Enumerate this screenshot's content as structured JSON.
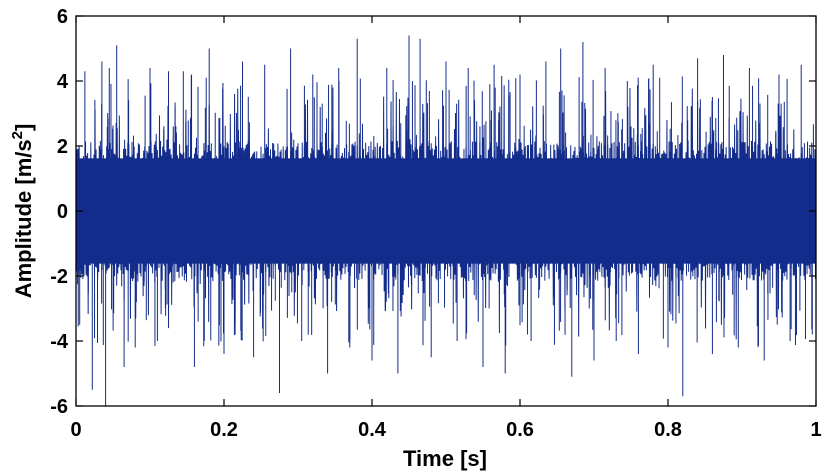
{
  "chart_data": {
    "type": "line",
    "title": "",
    "xlabel": "Time [s]",
    "ylabel_prefix": "Amplitude [m/s",
    "ylabel_sup": "2",
    "ylabel_suffix": "]",
    "xlim": [
      0,
      1
    ],
    "ylim": [
      -6,
      6
    ],
    "xticks": [
      0,
      0.2,
      0.4,
      0.6,
      0.8,
      1
    ],
    "xtick_labels": [
      "0",
      "0.2",
      "0.4",
      "0.6",
      "0.8",
      "1"
    ],
    "yticks": [
      -6,
      -4,
      -2,
      0,
      2,
      4,
      6
    ],
    "ytick_labels": [
      "-6",
      "-4",
      "-2",
      "0",
      "2",
      "4",
      "6"
    ],
    "grid": false,
    "legend": "none",
    "series": [
      {
        "color": "#132c8c",
        "core_amplitude": 1.8,
        "peaks": [
          {
            "x": 0.0,
            "y": 4.0
          },
          {
            "x": 0.005,
            "y": -3.5
          },
          {
            "x": 0.012,
            "y": 4.3
          },
          {
            "x": 0.022,
            "y": -5.5
          },
          {
            "x": 0.035,
            "y": 4.6
          },
          {
            "x": 0.04,
            "y": -6.0
          },
          {
            "x": 0.045,
            "y": 4.4
          },
          {
            "x": 0.055,
            "y": 5.1
          },
          {
            "x": 0.065,
            "y": -4.8
          },
          {
            "x": 0.08,
            "y": -4.2
          },
          {
            "x": 0.1,
            "y": 4.4
          },
          {
            "x": 0.11,
            "y": -4.0
          },
          {
            "x": 0.125,
            "y": 4.3
          },
          {
            "x": 0.145,
            "y": 4.3
          },
          {
            "x": 0.16,
            "y": -4.8
          },
          {
            "x": 0.18,
            "y": 5.0
          },
          {
            "x": 0.2,
            "y": -4.4
          },
          {
            "x": 0.215,
            "y": -3.8
          },
          {
            "x": 0.225,
            "y": 4.6
          },
          {
            "x": 0.24,
            "y": -4.5
          },
          {
            "x": 0.255,
            "y": 4.5
          },
          {
            "x": 0.275,
            "y": -5.6
          },
          {
            "x": 0.29,
            "y": 5.0
          },
          {
            "x": 0.305,
            "y": -4.0
          },
          {
            "x": 0.32,
            "y": 4.2
          },
          {
            "x": 0.34,
            "y": -5.0
          },
          {
            "x": 0.355,
            "y": 4.4
          },
          {
            "x": 0.37,
            "y": -4.2
          },
          {
            "x": 0.38,
            "y": 5.3
          },
          {
            "x": 0.4,
            "y": -4.6
          },
          {
            "x": 0.42,
            "y": 4.4
          },
          {
            "x": 0.435,
            "y": -5.0
          },
          {
            "x": 0.45,
            "y": 5.4
          },
          {
            "x": 0.465,
            "y": 5.3
          },
          {
            "x": 0.48,
            "y": -4.5
          },
          {
            "x": 0.5,
            "y": 4.6
          },
          {
            "x": 0.515,
            "y": -4.0
          },
          {
            "x": 0.53,
            "y": 4.4
          },
          {
            "x": 0.55,
            "y": -4.8
          },
          {
            "x": 0.565,
            "y": 4.5
          },
          {
            "x": 0.58,
            "y": -5.0
          },
          {
            "x": 0.6,
            "y": 4.2
          },
          {
            "x": 0.615,
            "y": -4.0
          },
          {
            "x": 0.635,
            "y": 4.6
          },
          {
            "x": 0.655,
            "y": 5.0
          },
          {
            "x": 0.67,
            "y": -5.1
          },
          {
            "x": 0.685,
            "y": 5.2
          },
          {
            "x": 0.7,
            "y": -4.6
          },
          {
            "x": 0.715,
            "y": 4.4
          },
          {
            "x": 0.73,
            "y": -4.0
          },
          {
            "x": 0.745,
            "y": 4.0
          },
          {
            "x": 0.76,
            "y": -4.4
          },
          {
            "x": 0.78,
            "y": 4.5
          },
          {
            "x": 0.8,
            "y": -4.2
          },
          {
            "x": 0.82,
            "y": -5.7
          },
          {
            "x": 0.84,
            "y": 4.7
          },
          {
            "x": 0.86,
            "y": -4.4
          },
          {
            "x": 0.875,
            "y": 4.8
          },
          {
            "x": 0.895,
            "y": -4.2
          },
          {
            "x": 0.91,
            "y": 4.4
          },
          {
            "x": 0.93,
            "y": -4.6
          },
          {
            "x": 0.95,
            "y": 4.2
          },
          {
            "x": 0.965,
            "y": -4.0
          },
          {
            "x": 0.98,
            "y": 4.5
          },
          {
            "x": 0.995,
            "y": -3.8
          }
        ]
      }
    ]
  }
}
